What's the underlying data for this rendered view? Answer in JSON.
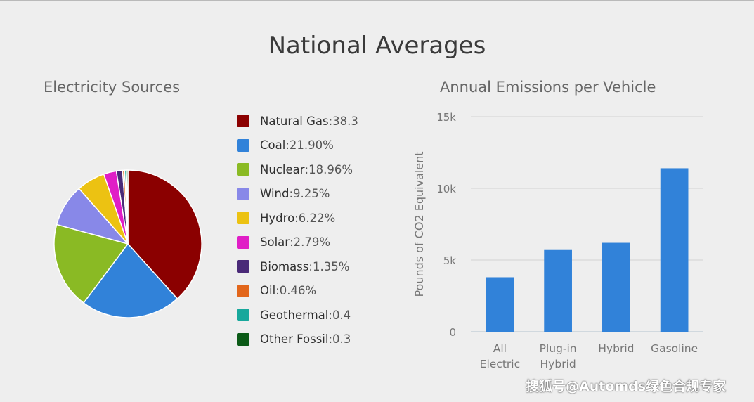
{
  "page": {
    "title": "National Averages",
    "watermark": "搜狐号@Automds绿色合规专家"
  },
  "chart_data": [
    {
      "type": "pie",
      "title": "Electricity Sources",
      "legend_position": "right",
      "slices": [
        {
          "name": "Natural Gas",
          "label": "38.3",
          "value": 38.3,
          "color": "#8b0000"
        },
        {
          "name": "Coal",
          "label": "21.90%",
          "value": 21.9,
          "color": "#3182d9"
        },
        {
          "name": "Nuclear",
          "label": "18.96%",
          "value": 18.96,
          "color": "#8aba24"
        },
        {
          "name": "Wind",
          "label": "9.25%",
          "value": 9.25,
          "color": "#8888e8"
        },
        {
          "name": "Hydro",
          "label": "6.22%",
          "value": 6.22,
          "color": "#ecc212"
        },
        {
          "name": "Solar",
          "label": "2.79%",
          "value": 2.79,
          "color": "#e01ec6"
        },
        {
          "name": "Biomass",
          "label": "1.35%",
          "value": 1.35,
          "color": "#4a2a78"
        },
        {
          "name": "Oil",
          "label": "0.46%",
          "value": 0.46,
          "color": "#e2661b"
        },
        {
          "name": "Geothermal",
          "label": "0.4",
          "value": 0.4,
          "color": "#18a89c"
        },
        {
          "name": "Other Fossil",
          "label": "0.3",
          "value": 0.3,
          "color": "#0b5a17"
        }
      ]
    },
    {
      "type": "bar",
      "title": "Annual Emissions per Vehicle",
      "ylabel": "Pounds of CO2 Equivalent",
      "xlabel": "",
      "ylim": [
        0,
        15000
      ],
      "yticks": [
        {
          "value": 0,
          "label": "0"
        },
        {
          "value": 5000,
          "label": "5k"
        },
        {
          "value": 10000,
          "label": "10k"
        },
        {
          "value": 15000,
          "label": "15k"
        }
      ],
      "grid": true,
      "bar_color": "#3182d9",
      "categories": [
        [
          "All",
          "Electric"
        ],
        [
          "Plug-in",
          "Hybrid"
        ],
        [
          "Hybrid"
        ],
        [
          "Gasoline"
        ]
      ],
      "values": [
        3800,
        5700,
        6200,
        11400
      ]
    }
  ]
}
